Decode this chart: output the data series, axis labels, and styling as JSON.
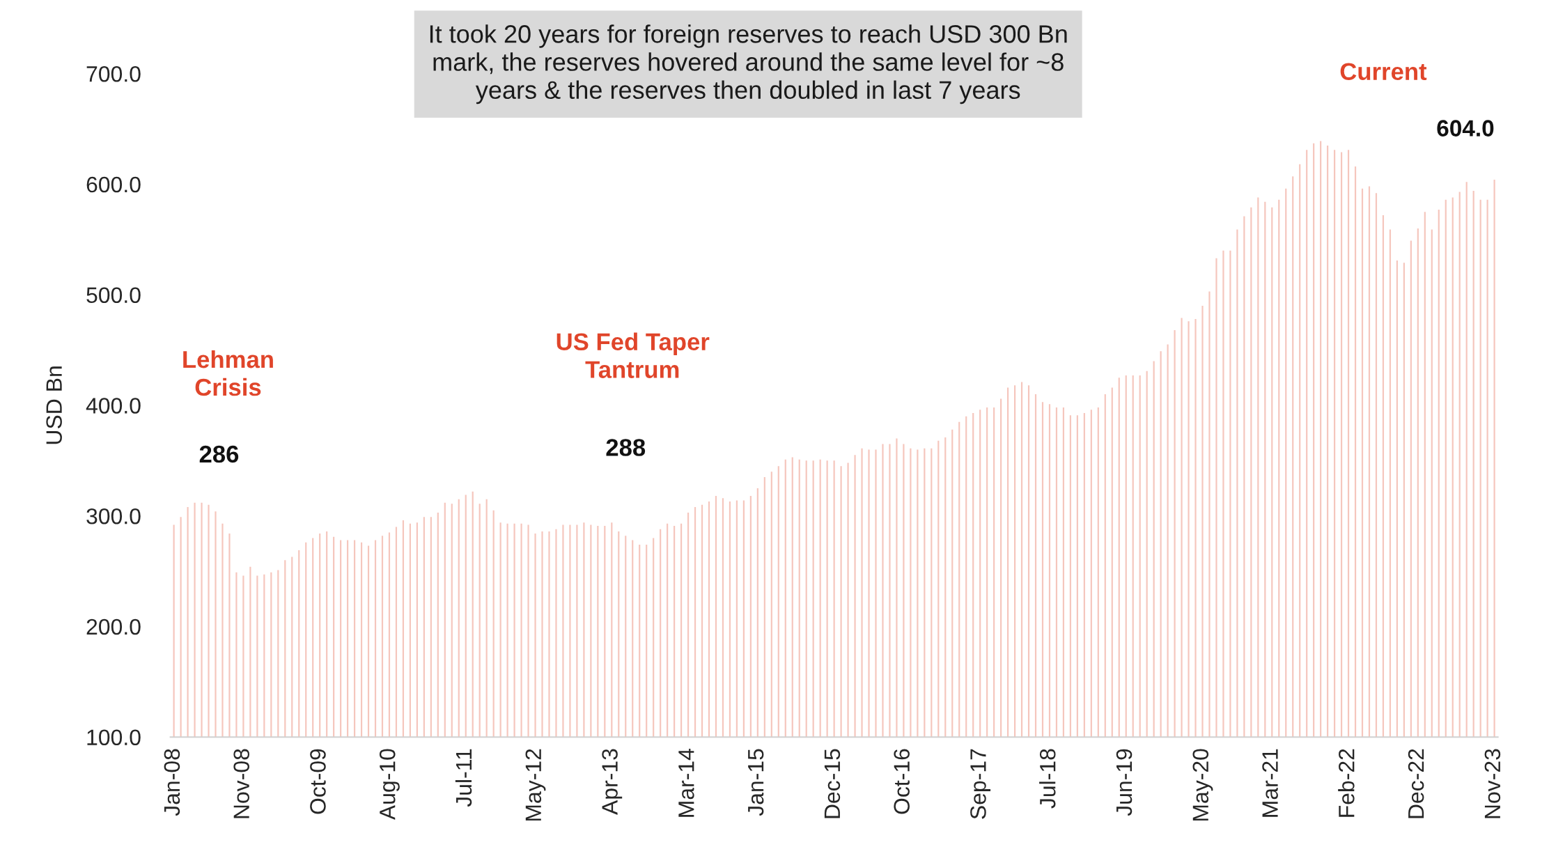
{
  "chart_data": {
    "type": "bar",
    "title": "It took 20 years for foreign reserves to reach USD 300 Bn\nmark, the reserves hovered around the same level for ~8\nyears & the reserves then doubled in last 7 years",
    "ylabel": "USD Bn",
    "categories": [
      "Jan-08",
      null,
      null,
      null,
      null,
      null,
      null,
      null,
      null,
      null,
      "Nov-08",
      null,
      null,
      null,
      null,
      null,
      null,
      null,
      null,
      null,
      null,
      "Oct-09",
      null,
      null,
      null,
      null,
      null,
      null,
      null,
      null,
      null,
      "Aug-10",
      null,
      null,
      null,
      null,
      null,
      null,
      null,
      null,
      null,
      null,
      "Jul-11",
      null,
      null,
      null,
      null,
      null,
      null,
      null,
      null,
      null,
      "May-12",
      null,
      null,
      null,
      null,
      null,
      null,
      null,
      null,
      null,
      null,
      "Apr-13",
      null,
      null,
      null,
      null,
      null,
      null,
      null,
      null,
      null,
      null,
      "Mar-14",
      null,
      null,
      null,
      null,
      null,
      null,
      null,
      null,
      null,
      "Jan-15",
      null,
      null,
      null,
      null,
      null,
      null,
      null,
      null,
      null,
      null,
      "Dec-15",
      null,
      null,
      null,
      null,
      null,
      null,
      null,
      null,
      null,
      "Oct-16",
      null,
      null,
      null,
      null,
      null,
      null,
      null,
      null,
      null,
      null,
      "Sep-17",
      null,
      null,
      null,
      null,
      null,
      null,
      null,
      null,
      null,
      "Jul-18",
      null,
      null,
      null,
      null,
      null,
      null,
      null,
      null,
      null,
      null,
      "Jun-19",
      null,
      null,
      null,
      null,
      null,
      null,
      null,
      null,
      null,
      null,
      "May-20",
      null,
      null,
      null,
      null,
      null,
      null,
      null,
      null,
      null,
      "Mar-21",
      null,
      null,
      null,
      null,
      null,
      null,
      null,
      null,
      null,
      null,
      "Feb-22",
      null,
      null,
      null,
      null,
      null,
      null,
      null,
      null,
      null,
      "Dec-22",
      null,
      null,
      null,
      null,
      null,
      null,
      null,
      null,
      null,
      null,
      "Nov-23"
    ],
    "values": [
      292,
      299,
      308,
      312,
      312,
      310,
      304,
      293,
      284,
      249,
      246,
      254,
      246,
      247,
      249,
      251,
      260,
      263,
      269,
      276,
      280,
      284,
      286,
      281,
      278,
      278,
      278,
      276,
      273,
      278,
      282,
      285,
      290,
      296,
      293,
      294,
      299,
      299,
      303,
      312,
      311,
      315,
      319,
      322,
      311,
      315,
      305,
      294,
      293,
      293,
      293,
      292,
      284,
      286,
      286,
      288,
      292,
      292,
      292,
      294,
      292,
      291,
      291,
      294,
      286,
      282,
      278,
      274,
      274,
      280,
      288,
      293,
      291,
      293,
      303,
      308,
      310,
      313,
      318,
      316,
      313,
      314,
      314,
      318,
      325,
      335,
      340,
      345,
      351,
      353,
      351,
      350,
      350,
      351,
      350,
      350,
      345,
      348,
      355,
      361,
      360,
      360,
      365,
      365,
      370,
      365,
      361,
      360,
      361,
      361,
      368,
      371,
      378,
      385,
      390,
      393,
      396,
      398,
      398,
      406,
      416,
      418,
      421,
      418,
      410,
      403,
      401,
      398,
      398,
      391,
      391,
      393,
      396,
      398,
      410,
      416,
      425,
      427,
      427,
      427,
      431,
      440,
      449,
      455,
      468,
      479,
      476,
      478,
      490,
      503,
      533,
      540,
      540,
      559,
      571,
      579,
      588,
      584,
      579,
      586,
      596,
      607,
      618,
      631,
      637,
      639,
      635,
      631,
      629,
      631,
      616,
      596,
      598,
      592,
      572,
      559,
      531,
      529,
      549,
      560,
      575,
      559,
      577,
      586,
      588,
      593,
      602,
      594,
      586,
      586,
      604
    ],
    "color": "#f5c6bd",
    "ylim": [
      100,
      700
    ],
    "yticks": [
      {
        "value": 100,
        "label": "100.0"
      },
      {
        "value": 200,
        "label": "200.0"
      },
      {
        "value": 300,
        "label": "300.0"
      },
      {
        "value": 400,
        "label": "400.0"
      },
      {
        "value": 500,
        "label": "500.0"
      },
      {
        "value": 600,
        "label": "600.0"
      },
      {
        "value": 700,
        "label": "700.0"
      }
    ],
    "annotations": [
      "Lehman\nCrisis",
      "286",
      "US Fed Taper\nTantrum",
      "288",
      "Current",
      {
        "text": "604.0",
        "x": "Nov-23",
        "y": 604
      }
    ],
    "grid": false,
    "legend": false
  }
}
